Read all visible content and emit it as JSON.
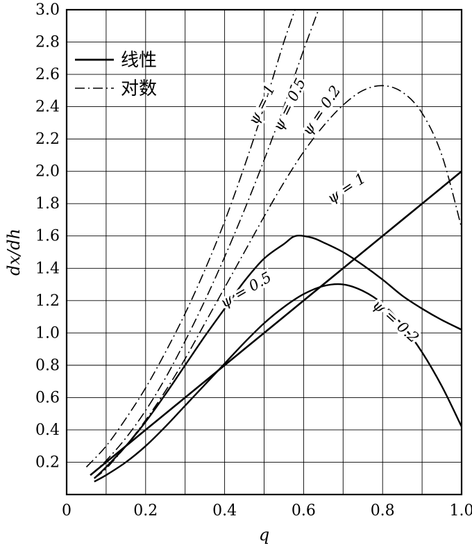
{
  "page": {
    "background": "#ffffff",
    "ink": "#000000"
  },
  "chart_data": {
    "type": "line",
    "title": "",
    "xlabel": "q",
    "ylabel": "dx/dh",
    "xlim": [
      0,
      1.0
    ],
    "ylim": [
      0,
      3.0
    ],
    "x_grid_step": 0.1,
    "y_grid_step": 0.2,
    "grid": true,
    "x_ticks": {
      "values": [
        0,
        0.2,
        0.4,
        0.6,
        0.8,
        1.0
      ],
      "labels": [
        "0",
        "0.2",
        "0.4",
        "0.6",
        "0.8",
        "1.0"
      ]
    },
    "y_ticks": {
      "values": [
        0.2,
        0.4,
        0.6,
        0.8,
        1.0,
        1.2,
        1.4,
        1.6,
        1.8,
        2.0,
        2.2,
        2.4,
        2.6,
        2.8,
        3.0
      ],
      "labels": [
        "0.2",
        "0.4",
        "0.6",
        "0.8",
        "1.0",
        "1.2",
        "1.4",
        "1.6",
        "1.8",
        "2.0",
        "2.2",
        "2.4",
        "2.6",
        "2.8",
        "3.0"
      ]
    },
    "legend": {
      "position": "upper-left-inside",
      "items": [
        {
          "label": "线性",
          "style": "solid"
        },
        {
          "label": "对数",
          "style": "dashdot"
        }
      ]
    },
    "series": [
      {
        "id": "linear-psi-1",
        "group": "线性",
        "style": "solid",
        "width": 2.6,
        "label": "ψ = 1",
        "label_pos": [
          0.715,
          1.87
        ],
        "label_rotation": -33,
        "points": [
          [
            0.06,
            0.12
          ],
          [
            0.1,
            0.2
          ],
          [
            0.2,
            0.4
          ],
          [
            0.3,
            0.6
          ],
          [
            0.4,
            0.8
          ],
          [
            0.5,
            1.0
          ],
          [
            0.6,
            1.2
          ],
          [
            0.7,
            1.4
          ],
          [
            0.8,
            1.6
          ],
          [
            0.9,
            1.8
          ],
          [
            1.0,
            2.0
          ]
        ]
      },
      {
        "id": "linear-psi-0.5",
        "group": "线性",
        "style": "solid",
        "width": 2.4,
        "label": "ψ = 0.5",
        "label_pos": [
          0.46,
          1.24
        ],
        "label_rotation": -30,
        "points": [
          [
            0.07,
            0.1
          ],
          [
            0.1,
            0.17
          ],
          [
            0.15,
            0.3
          ],
          [
            0.2,
            0.45
          ],
          [
            0.25,
            0.62
          ],
          [
            0.3,
            0.8
          ],
          [
            0.35,
            0.98
          ],
          [
            0.4,
            1.15
          ],
          [
            0.45,
            1.32
          ],
          [
            0.5,
            1.46
          ],
          [
            0.55,
            1.55
          ],
          [
            0.58,
            1.6
          ],
          [
            0.62,
            1.59
          ],
          [
            0.65,
            1.56
          ],
          [
            0.7,
            1.5
          ],
          [
            0.75,
            1.42
          ],
          [
            0.8,
            1.33
          ],
          [
            0.85,
            1.23
          ],
          [
            0.9,
            1.15
          ],
          [
            0.95,
            1.08
          ],
          [
            1.0,
            1.02
          ]
        ]
      },
      {
        "id": "linear-psi-0.2",
        "group": "线性",
        "style": "solid",
        "width": 2.4,
        "label": "ψ = 0.2",
        "label_pos": [
          0.825,
          1.05
        ],
        "label_rotation": 42,
        "points": [
          [
            0.07,
            0.08
          ],
          [
            0.1,
            0.12
          ],
          [
            0.15,
            0.2
          ],
          [
            0.2,
            0.3
          ],
          [
            0.25,
            0.42
          ],
          [
            0.3,
            0.55
          ],
          [
            0.35,
            0.68
          ],
          [
            0.4,
            0.81
          ],
          [
            0.45,
            0.94
          ],
          [
            0.5,
            1.06
          ],
          [
            0.55,
            1.16
          ],
          [
            0.6,
            1.24
          ],
          [
            0.65,
            1.29
          ],
          [
            0.7,
            1.3
          ],
          [
            0.75,
            1.26
          ],
          [
            0.8,
            1.18
          ],
          [
            0.85,
            1.05
          ],
          [
            0.9,
            0.88
          ],
          [
            0.95,
            0.67
          ],
          [
            1.0,
            0.42
          ]
        ]
      },
      {
        "id": "log-psi-1",
        "group": "对数",
        "style": "dashdot",
        "width": 1.6,
        "label": "ψ = 1",
        "label_pos": [
          0.505,
          2.4
        ],
        "label_rotation": -64,
        "points": [
          [
            0.05,
            0.17
          ],
          [
            0.1,
            0.3
          ],
          [
            0.15,
            0.47
          ],
          [
            0.2,
            0.66
          ],
          [
            0.25,
            0.88
          ],
          [
            0.3,
            1.12
          ],
          [
            0.35,
            1.39
          ],
          [
            0.4,
            1.69
          ],
          [
            0.45,
            2.03
          ],
          [
            0.5,
            2.4
          ],
          [
            0.55,
            2.8
          ],
          [
            0.59,
            3.08
          ]
        ]
      },
      {
        "id": "log-psi-0.5",
        "group": "对数",
        "style": "dashdot",
        "width": 1.6,
        "label": "ψ = 0.5",
        "label_pos": [
          0.575,
          2.4
        ],
        "label_rotation": -64,
        "points": [
          [
            0.06,
            0.12
          ],
          [
            0.1,
            0.21
          ],
          [
            0.15,
            0.35
          ],
          [
            0.2,
            0.52
          ],
          [
            0.25,
            0.72
          ],
          [
            0.3,
            0.95
          ],
          [
            0.35,
            1.2
          ],
          [
            0.4,
            1.47
          ],
          [
            0.45,
            1.76
          ],
          [
            0.5,
            2.07
          ],
          [
            0.55,
            2.4
          ],
          [
            0.6,
            2.75
          ],
          [
            0.65,
            3.08
          ]
        ]
      },
      {
        "id": "log-psi-0.2",
        "group": "对数",
        "style": "dashdot",
        "width": 1.6,
        "label": "ψ = 0.2",
        "label_pos": [
          0.655,
          2.36
        ],
        "label_rotation": -56,
        "points": [
          [
            0.07,
            0.1
          ],
          [
            0.1,
            0.16
          ],
          [
            0.15,
            0.3
          ],
          [
            0.2,
            0.46
          ],
          [
            0.25,
            0.64
          ],
          [
            0.3,
            0.84
          ],
          [
            0.35,
            1.06
          ],
          [
            0.4,
            1.28
          ],
          [
            0.45,
            1.5
          ],
          [
            0.5,
            1.72
          ],
          [
            0.55,
            1.93
          ],
          [
            0.6,
            2.12
          ],
          [
            0.65,
            2.28
          ],
          [
            0.7,
            2.41
          ],
          [
            0.75,
            2.5
          ],
          [
            0.8,
            2.53
          ],
          [
            0.85,
            2.49
          ],
          [
            0.9,
            2.36
          ],
          [
            0.95,
            2.1
          ],
          [
            1.0,
            1.65
          ]
        ]
      }
    ]
  }
}
